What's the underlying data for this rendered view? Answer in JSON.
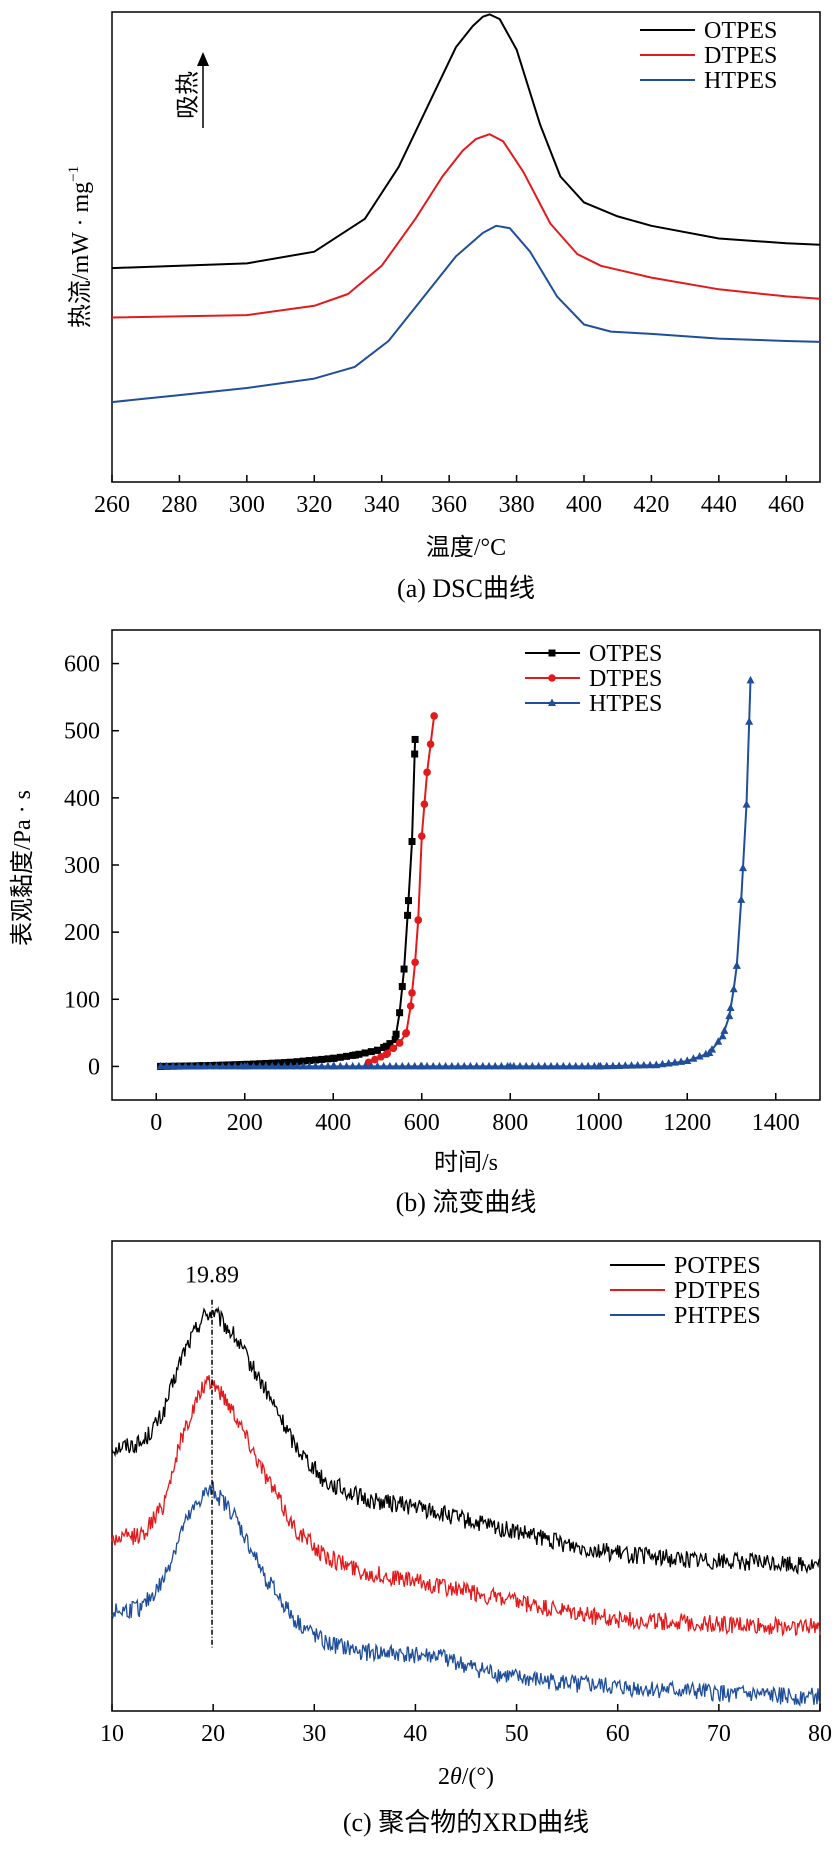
{
  "chart_data": [
    {
      "id": "dsc",
      "type": "line",
      "caption": "(a) DSC曲线",
      "xlabel": "温度/°C",
      "ylabel": "热流/mW·mg⁻¹",
      "ylabel_main": "热流/mW · mg",
      "ylabel_sup": "−1",
      "annotation": "吸热",
      "xlim": [
        260,
        470
      ],
      "ylim": [
        0,
        10
      ],
      "xticks": [
        260,
        280,
        300,
        320,
        340,
        360,
        380,
        400,
        420,
        440,
        460
      ],
      "yticks": [],
      "legend_position": "top-right",
      "series": [
        {
          "name": "OTPES",
          "color": "#000000",
          "points": [
            [
              260,
              4.55
            ],
            [
              300,
              4.65
            ],
            [
              320,
              4.9
            ],
            [
              335,
              5.6
            ],
            [
              345,
              6.7
            ],
            [
              355,
              8.2
            ],
            [
              362,
              9.25
            ],
            [
              367,
              9.7
            ],
            [
              370,
              9.9
            ],
            [
              372,
              9.95
            ],
            [
              375,
              9.85
            ],
            [
              380,
              9.2
            ],
            [
              387,
              7.6
            ],
            [
              393,
              6.5
            ],
            [
              400,
              5.95
            ],
            [
              410,
              5.65
            ],
            [
              420,
              5.45
            ],
            [
              440,
              5.18
            ],
            [
              460,
              5.08
            ],
            [
              470,
              5.05
            ]
          ]
        },
        {
          "name": "DTPES",
          "color": "#e31a1c",
          "points": [
            [
              260,
              3.5
            ],
            [
              300,
              3.55
            ],
            [
              320,
              3.75
            ],
            [
              330,
              4.0
            ],
            [
              340,
              4.6
            ],
            [
              350,
              5.6
            ],
            [
              358,
              6.5
            ],
            [
              364,
              7.05
            ],
            [
              368,
              7.3
            ],
            [
              372,
              7.4
            ],
            [
              376,
              7.25
            ],
            [
              382,
              6.6
            ],
            [
              390,
              5.5
            ],
            [
              398,
              4.85
            ],
            [
              405,
              4.6
            ],
            [
              420,
              4.35
            ],
            [
              440,
              4.1
            ],
            [
              460,
              3.95
            ],
            [
              470,
              3.9
            ]
          ]
        },
        {
          "name": "HTPES",
          "color": "#1f4e9a",
          "points": [
            [
              260,
              1.7
            ],
            [
              280,
              1.85
            ],
            [
              300,
              2.0
            ],
            [
              320,
              2.2
            ],
            [
              332,
              2.45
            ],
            [
              342,
              3.0
            ],
            [
              352,
              3.9
            ],
            [
              362,
              4.8
            ],
            [
              370,
              5.3
            ],
            [
              374,
              5.45
            ],
            [
              378,
              5.4
            ],
            [
              384,
              4.9
            ],
            [
              392,
              3.95
            ],
            [
              400,
              3.35
            ],
            [
              408,
              3.2
            ],
            [
              420,
              3.15
            ],
            [
              440,
              3.05
            ],
            [
              460,
              3.0
            ],
            [
              470,
              2.98
            ]
          ]
        }
      ]
    },
    {
      "id": "rheology",
      "type": "line",
      "caption": "(b) 流变曲线",
      "xlabel": "时间/s",
      "ylabel": "表观黏度/Pa · s",
      "xlim": [
        -100,
        1500
      ],
      "ylim": [
        -50,
        650
      ],
      "xticks": [
        0,
        200,
        400,
        600,
        800,
        1000,
        1200,
        1400
      ],
      "yticks": [
        0,
        100,
        200,
        300,
        400,
        500,
        600
      ],
      "legend_position": "top-right",
      "series": [
        {
          "name": "OTPES",
          "color": "#000000",
          "marker": "square",
          "points": [
            [
              10,
              0
            ],
            [
              100,
              1
            ],
            [
              200,
              3
            ],
            [
              300,
              6
            ],
            [
              400,
              12
            ],
            [
              450,
              17
            ],
            [
              500,
              24
            ],
            [
              520,
              30
            ],
            [
              540,
              40
            ],
            [
              550,
              80
            ],
            [
              560,
              145
            ],
            [
              568,
              225
            ],
            [
              578,
              335
            ],
            [
              585,
              487
            ]
          ]
        },
        {
          "name": "DTPES",
          "color": "#e31a1c",
          "marker": "circle",
          "points": [
            [
              480,
              6
            ],
            [
              520,
              18
            ],
            [
              550,
              35
            ],
            [
              565,
              50
            ],
            [
              575,
              90
            ],
            [
              585,
              155
            ],
            [
              592,
              218
            ],
            [
              600,
              343
            ],
            [
              612,
              438
            ],
            [
              628,
              522
            ]
          ]
        },
        {
          "name": "HTPES",
          "color": "#1f4e9a",
          "marker": "triangle",
          "points": [
            [
              10,
              0
            ],
            [
              200,
              0
            ],
            [
              400,
              0
            ],
            [
              600,
              0
            ],
            [
              800,
              0
            ],
            [
              1000,
              0
            ],
            [
              1130,
              2
            ],
            [
              1200,
              8
            ],
            [
              1250,
              20
            ],
            [
              1280,
              45
            ],
            [
              1295,
              75
            ],
            [
              1305,
              115
            ],
            [
              1312,
              150
            ],
            [
              1322,
              248
            ],
            [
              1334,
              390
            ],
            [
              1343,
              575
            ]
          ]
        }
      ]
    },
    {
      "id": "xrd",
      "type": "line",
      "caption": "(c) 聚合物的XRD曲线",
      "xlabel": "2θ/(°)",
      "xlabel_pre": "2",
      "xlabel_theta": "θ",
      "xlabel_post": "/(°)",
      "peak_label": "19.89",
      "peak_x": 19.89,
      "xlim": [
        10,
        80
      ],
      "ylim": [
        0,
        10
      ],
      "xticks": [
        10,
        20,
        30,
        40,
        50,
        60,
        70,
        80
      ],
      "yticks": [],
      "legend_position": "top-right",
      "series": [
        {
          "name": "POTPES",
          "color": "#000000",
          "points": [
            [
              10,
              5.6
            ],
            [
              13,
              5.7
            ],
            [
              15,
              6.3
            ],
            [
              17,
              7.6
            ],
            [
              19,
              8.4
            ],
            [
              20,
              8.5
            ],
            [
              22,
              8.0
            ],
            [
              25,
              6.9
            ],
            [
              28,
              5.7
            ],
            [
              31,
              4.9
            ],
            [
              35,
              4.5
            ],
            [
              40,
              4.35
            ],
            [
              45,
              4.05
            ],
            [
              50,
              3.8
            ],
            [
              55,
              3.55
            ],
            [
              60,
              3.35
            ],
            [
              65,
              3.25
            ],
            [
              70,
              3.2
            ],
            [
              75,
              3.15
            ],
            [
              80,
              3.1
            ]
          ]
        },
        {
          "name": "PDTPES",
          "color": "#e31a1c",
          "points": [
            [
              10,
              3.65
            ],
            [
              13,
              3.75
            ],
            [
              15,
              4.35
            ],
            [
              17,
              5.9
            ],
            [
              19,
              6.9
            ],
            [
              20,
              7.0
            ],
            [
              22,
              6.4
            ],
            [
              25,
              5.1
            ],
            [
              28,
              3.9
            ],
            [
              31,
              3.3
            ],
            [
              35,
              2.95
            ],
            [
              40,
              2.75
            ],
            [
              45,
              2.55
            ],
            [
              50,
              2.3
            ],
            [
              55,
              2.1
            ],
            [
              60,
              1.95
            ],
            [
              65,
              1.9
            ],
            [
              70,
              1.85
            ],
            [
              75,
              1.8
            ],
            [
              80,
              1.8
            ]
          ]
        },
        {
          "name": "PHTPES",
          "color": "#1f4e9a",
          "points": [
            [
              10,
              2.1
            ],
            [
              13,
              2.2
            ],
            [
              15,
              2.75
            ],
            [
              17,
              3.9
            ],
            [
              19,
              4.6
            ],
            [
              20,
              4.7
            ],
            [
              22,
              4.2
            ],
            [
              25,
              2.9
            ],
            [
              28,
              1.95
            ],
            [
              31,
              1.45
            ],
            [
              35,
              1.25
            ],
            [
              40,
              1.2
            ],
            [
              43,
              1.15
            ],
            [
              45,
              0.95
            ],
            [
              50,
              0.7
            ],
            [
              55,
              0.6
            ],
            [
              60,
              0.5
            ],
            [
              65,
              0.45
            ],
            [
              70,
              0.38
            ],
            [
              75,
              0.33
            ],
            [
              80,
              0.3
            ]
          ]
        }
      ]
    }
  ]
}
